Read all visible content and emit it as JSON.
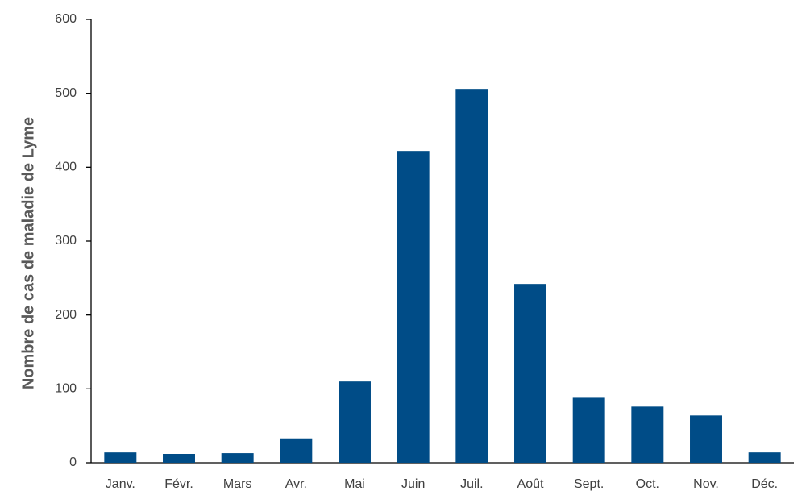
{
  "chart_data": {
    "type": "bar",
    "y_label": "Nombre de cas de maladie  de Lyme",
    "categories": [
      "Janv.",
      "Févr.",
      "Mars",
      "Avr.",
      "Mai",
      "Juin",
      "Juil.",
      "Août",
      "Sept.",
      "Oct.",
      "Nov.",
      "Déc."
    ],
    "values": [
      14,
      12,
      13,
      33,
      110,
      422,
      506,
      242,
      89,
      76,
      64,
      14
    ],
    "color": "#004c87",
    "ylim": [
      0,
      600
    ],
    "yticks": [
      0,
      100,
      200,
      300,
      400,
      500,
      600
    ],
    "grid": false
  }
}
